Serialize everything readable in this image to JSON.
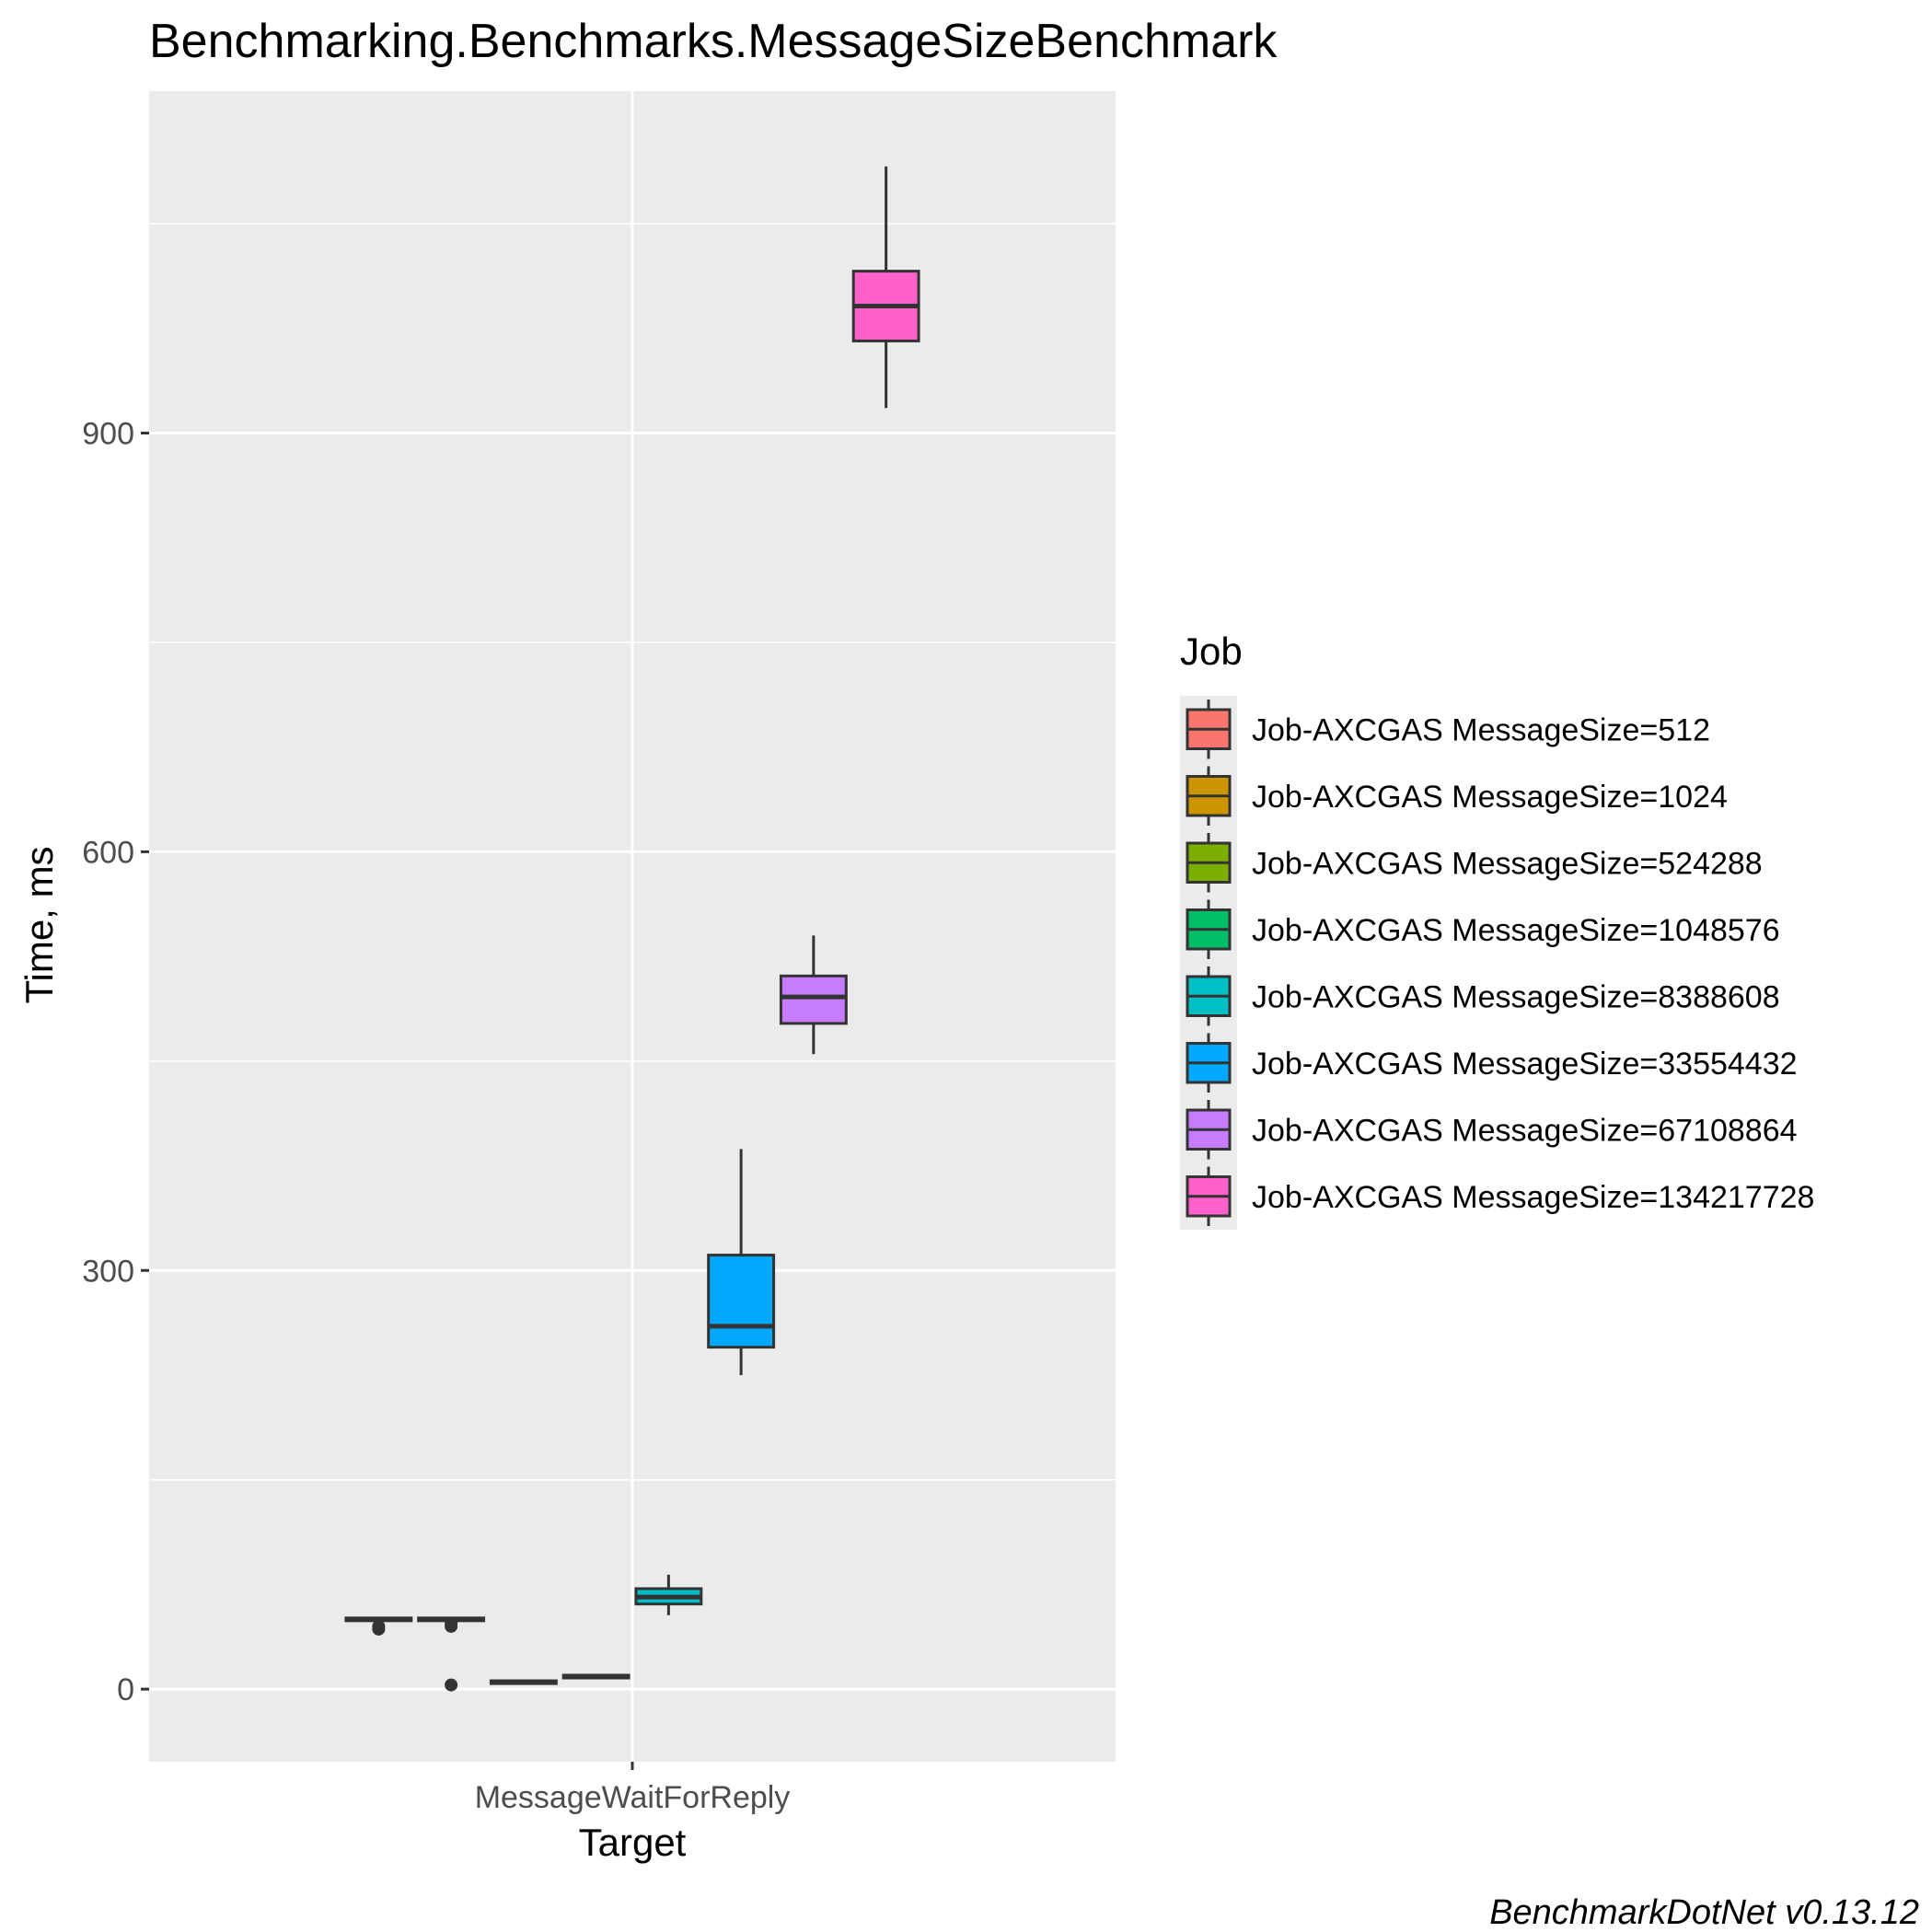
{
  "chart_data": {
    "type": "boxplot",
    "title": "Benchmarking.Benchmarks.MessageSizeBenchmark",
    "xlabel": "Target",
    "ylabel": "Time, ms",
    "categories": [
      "MessageWaitForReply"
    ],
    "yticks": [
      0,
      300,
      600,
      900
    ],
    "ylim": [
      -52,
      1145
    ],
    "grid": true,
    "legend": {
      "title": "Job",
      "placement": "right"
    },
    "caption": "BenchmarkDotNet v0.13.12",
    "series": [
      {
        "name": "Job-AXCGAS MessageSize=512",
        "color": "#F8766D",
        "category": "MessageWaitForReply",
        "min": 49,
        "q1": 49,
        "median": 50,
        "q3": 51,
        "max": 51,
        "outliers": [
          43,
          45
        ]
      },
      {
        "name": "Job-AXCGAS MessageSize=1024",
        "color": "#CD9600",
        "category": "MessageWaitForReply",
        "min": 49,
        "q1": 49,
        "median": 50,
        "q3": 51,
        "max": 51,
        "outliers": [
          3,
          45,
          47
        ]
      },
      {
        "name": "Job-AXCGAS MessageSize=524288",
        "color": "#7CAE00",
        "category": "MessageWaitForReply",
        "min": 4,
        "q1": 4,
        "median": 5,
        "q3": 6,
        "max": 6,
        "outliers": []
      },
      {
        "name": "Job-AXCGAS MessageSize=1048576",
        "color": "#00BE67",
        "category": "MessageWaitForReply",
        "min": 8,
        "q1": 8,
        "median": 9,
        "q3": 10,
        "max": 10,
        "outliers": []
      },
      {
        "name": "Job-AXCGAS MessageSize=8388608",
        "color": "#00BFC4",
        "category": "MessageWaitForReply",
        "min": 53,
        "q1": 61,
        "median": 66,
        "q3": 72,
        "max": 82,
        "outliers": []
      },
      {
        "name": "Job-AXCGAS MessageSize=33554432",
        "color": "#00A9FF",
        "category": "MessageWaitForReply",
        "min": 225,
        "q1": 245,
        "median": 260,
        "q3": 311,
        "max": 387,
        "outliers": []
      },
      {
        "name": "Job-AXCGAS MessageSize=67108864",
        "color": "#C77CFF",
        "category": "MessageWaitForReply",
        "min": 455,
        "q1": 477,
        "median": 496,
        "q3": 511,
        "max": 540,
        "outliers": []
      },
      {
        "name": "Job-AXCGAS MessageSize=134217728",
        "color": "#FF61CC",
        "category": "MessageWaitForReply",
        "min": 918,
        "q1": 966,
        "median": 991,
        "q3": 1016,
        "max": 1091,
        "outliers": []
      }
    ]
  }
}
